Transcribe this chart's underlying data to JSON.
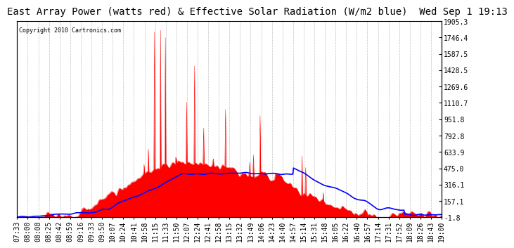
{
  "title": "East Array Power (watts red) & Effective Solar Radiation (W/m2 blue)  Wed Sep 1 19:13",
  "copyright_text": "Copyright 2010 Cartronics.com",
  "background_color": "#ffffff",
  "plot_bg_color": "#ffffff",
  "grid_color": "#c0c0c0",
  "yticks": [
    -1.8,
    157.1,
    316.1,
    475.0,
    633.9,
    792.8,
    951.8,
    1110.7,
    1269.6,
    1428.5,
    1587.5,
    1746.4,
    1905.3
  ],
  "ymin": -1.8,
  "ymax": 1905.3,
  "red_color": "#ff0000",
  "blue_color": "#0000ff",
  "title_fontsize": 10,
  "tick_fontsize": 7,
  "xtick_labels": [
    "07:33",
    "08:00",
    "08:08",
    "08:25",
    "08:42",
    "08:59",
    "09:16",
    "09:33",
    "09:50",
    "10:07",
    "10:24",
    "10:41",
    "10:58",
    "11:15",
    "11:33",
    "11:50",
    "12:07",
    "12:24",
    "12:41",
    "12:58",
    "13:15",
    "13:32",
    "13:49",
    "14:06",
    "14:23",
    "14:40",
    "14:57",
    "15:14",
    "15:31",
    "15:48",
    "16:05",
    "16:22",
    "16:40",
    "16:57",
    "17:14",
    "17:31",
    "17:52",
    "18:09",
    "18:26",
    "18:43",
    "19:00"
  ],
  "n_points": 700
}
